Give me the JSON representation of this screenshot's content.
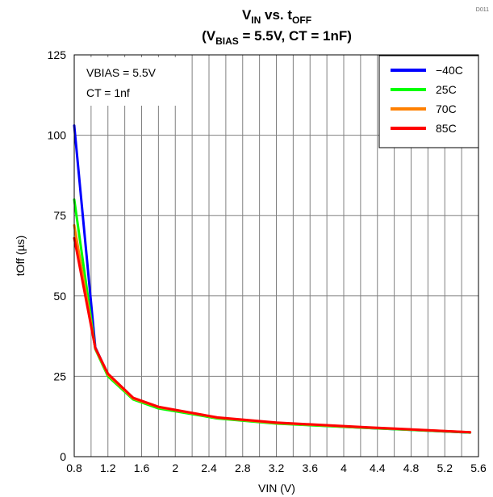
{
  "figure_id": "D011",
  "chart_data": {
    "type": "line",
    "title": {
      "line1": {
        "a": "V",
        "a_sub": "IN",
        "b": " vs. t",
        "b_sub": "OFF"
      },
      "line2": {
        "a": "(V",
        "a_sub": "BIAS",
        "b": " = 5.5V, CT = 1nF)"
      }
    },
    "xlabel": "VIN (V)",
    "ylabel": "tOff (µs)",
    "xlim": [
      0.8,
      5.6
    ],
    "ylim": [
      0,
      125
    ],
    "xticks": [
      "0.8",
      "1.2",
      "1.6",
      "2",
      "2.4",
      "2.8",
      "3.2",
      "3.6",
      "4",
      "4.4",
      "4.8",
      "5.2",
      "5.6"
    ],
    "xtick_values": [
      0.8,
      1.2,
      1.6,
      2.0,
      2.4,
      2.8,
      3.2,
      3.6,
      4.0,
      4.4,
      4.8,
      5.2,
      5.6
    ],
    "yticks": [
      "0",
      "25",
      "50",
      "75",
      "100",
      "125"
    ],
    "ytick_values": [
      0,
      25,
      50,
      75,
      100,
      125
    ],
    "x_minor_gridlines": [
      1.0,
      1.4,
      1.8,
      2.2,
      2.6,
      3.0,
      3.4,
      3.8,
      4.2,
      4.6,
      5.0,
      5.4
    ],
    "grid": true,
    "annotations": [
      "VBIAS = 5.5V",
      "CT = 1nf"
    ],
    "legend_position": "top-right",
    "series": [
      {
        "name": "−40C",
        "color": "#0000ff",
        "x": [
          0.8,
          1.05,
          1.2,
          1.5,
          1.8,
          2.5,
          3.2,
          4.3,
          5.5
        ],
        "y": [
          103,
          34,
          25.5,
          18,
          15.2,
          12,
          10.4,
          8.9,
          7.5
        ]
      },
      {
        "name": "25C",
        "color": "#00ff00",
        "x": [
          0.8,
          1.05,
          1.2,
          1.5,
          1.8,
          2.5,
          3.2,
          4.3,
          5.5
        ],
        "y": [
          80,
          33.5,
          25,
          17.8,
          15,
          11.9,
          10.3,
          8.9,
          7.5
        ]
      },
      {
        "name": "70C",
        "color": "#ff8000",
        "x": [
          0.8,
          1.05,
          1.2,
          1.5,
          1.8,
          2.5,
          3.2,
          4.3,
          5.5
        ],
        "y": [
          72,
          33.7,
          25.5,
          18.1,
          15.4,
          12.1,
          10.5,
          9.0,
          7.6
        ]
      },
      {
        "name": "85C",
        "color": "#ff0000",
        "x": [
          0.8,
          1.05,
          1.2,
          1.5,
          1.8,
          2.5,
          3.2,
          4.3,
          5.5
        ],
        "y": [
          68,
          33.8,
          25.8,
          18.3,
          15.5,
          12.2,
          10.6,
          9.1,
          7.6
        ]
      }
    ]
  }
}
